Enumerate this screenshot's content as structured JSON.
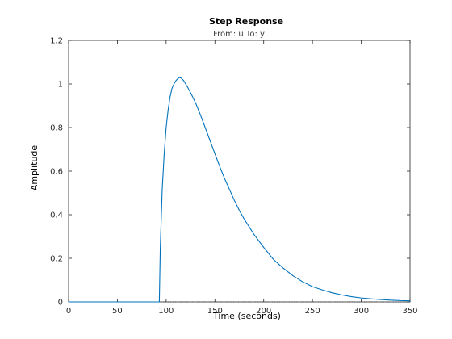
{
  "chart_data": {
    "type": "line",
    "title": "Step Response",
    "subtitle": "From: u  To: y",
    "xlabel": "Time (seconds)",
    "ylabel": "Amplitude",
    "xlim": [
      0,
      350
    ],
    "ylim": [
      0,
      1.2
    ],
    "xticks": [
      0,
      50,
      100,
      150,
      200,
      250,
      300,
      350
    ],
    "xtick_labels": [
      "0",
      "50",
      "100",
      "150",
      "200",
      "250",
      "300",
      "350"
    ],
    "yticks": [
      0,
      0.2,
      0.4,
      0.6,
      0.8,
      1.0,
      1.2
    ],
    "ytick_labels": [
      "0",
      "0.2",
      "0.4",
      "0.6",
      "0.8",
      "1",
      "1.2"
    ],
    "grid": false,
    "series": [
      {
        "color": "#0072bd",
        "x": [
          0,
          50,
          93,
          94,
          96,
          98,
          100,
          102,
          104,
          106,
          108,
          110,
          112,
          114,
          116,
          118,
          120,
          122,
          125,
          130,
          135,
          140,
          145,
          150,
          155,
          160,
          165,
          170,
          175,
          180,
          190,
          200,
          210,
          220,
          230,
          240,
          250,
          260,
          270,
          280,
          290,
          300,
          310,
          320,
          330,
          340,
          350
        ],
        "y": [
          0,
          0,
          0,
          0.25,
          0.52,
          0.68,
          0.8,
          0.88,
          0.94,
          0.98,
          1.0,
          1.015,
          1.025,
          1.03,
          1.025,
          1.015,
          1.0,
          0.985,
          0.96,
          0.915,
          0.86,
          0.8,
          0.74,
          0.68,
          0.62,
          0.565,
          0.515,
          0.465,
          0.42,
          0.38,
          0.31,
          0.25,
          0.195,
          0.155,
          0.12,
          0.092,
          0.07,
          0.055,
          0.042,
          0.032,
          0.024,
          0.018,
          0.014,
          0.011,
          0.008,
          0.006,
          0.005
        ]
      }
    ]
  }
}
